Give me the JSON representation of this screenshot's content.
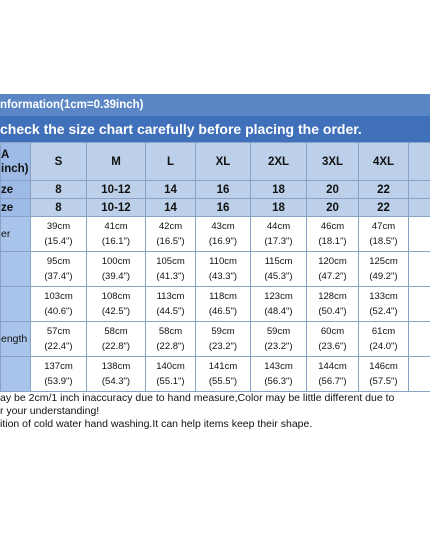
{
  "chart": {
    "info_text": "nformation(1cm=0.39inch)",
    "warning_text": " check the size chart carefully before placing the order.",
    "header_label_top": "A",
    "header_label_bottom": "inch)",
    "sizes": [
      "S",
      "M",
      "L",
      "XL",
      "2XL",
      "3XL",
      "4XL"
    ],
    "size_rows": [
      {
        "label": "ze",
        "values": [
          "8",
          "10-12",
          "14",
          "16",
          "18",
          "20",
          "22"
        ]
      },
      {
        "label": "ze",
        "values": [
          "8",
          "10-12",
          "14",
          "16",
          "18",
          "20",
          "22"
        ]
      }
    ],
    "measurements": [
      {
        "label": "er",
        "cm": [
          "39cm",
          "41cm",
          "42cm",
          "43cm",
          "44cm",
          "46cm",
          "47cm"
        ],
        "inch": [
          "(15.4\")",
          "(16.1\")",
          "(16.5\")",
          "(16.9\")",
          "(17.3\")",
          "(18.1\")",
          "(18.5\")"
        ]
      },
      {
        "label": "",
        "cm": [
          "95cm",
          "100cm",
          "105cm",
          "110cm",
          "115cm",
          "120cm",
          "125cm"
        ],
        "inch": [
          "(37.4\")",
          "(39.4\")",
          "(41.3\")",
          "(43.3\")",
          "(45.3\")",
          "(47.2\")",
          "(49.2\")"
        ]
      },
      {
        "label": "",
        "cm": [
          "103cm",
          "108cm",
          "113cm",
          "118cm",
          "123cm",
          "128cm",
          "133cm"
        ],
        "inch": [
          "(40.6\")",
          "(42.5\")",
          "(44.5\")",
          "(46.5\")",
          "(48.4\")",
          "(50.4\")",
          "(52.4\")"
        ]
      },
      {
        "label": "ength",
        "cm": [
          "57cm",
          "58cm",
          "58cm",
          "59cm",
          "59cm",
          "60cm",
          "61cm"
        ],
        "inch": [
          "(22.4\")",
          "(22.8\")",
          "(22.8\")",
          "(23.2\")",
          "(23.2\")",
          "(23.6\")",
          "(24.0\")"
        ]
      },
      {
        "label": "",
        "cm": [
          "137cm",
          "138cm",
          "140cm",
          "141cm",
          "143cm",
          "144cm",
          "146cm"
        ],
        "inch": [
          "(53.9\")",
          "(54.3\")",
          "(55.1\")",
          "(55.5\")",
          "(56.3\")",
          "(56.7\")",
          "(57.5\")"
        ]
      }
    ]
  },
  "notes": [
    "ay be 2cm/1 inch inaccuracy due to hand measure,Color may be little different due to",
    "r your understanding!",
    "ition of cold water hand washing.It can help items keep their shape."
  ],
  "colors": {
    "header_light": "#5b86c6",
    "header_dark": "#3f70b9",
    "row_fill": "#bcd0ea",
    "label_fill": "#9dbbe6"
  }
}
